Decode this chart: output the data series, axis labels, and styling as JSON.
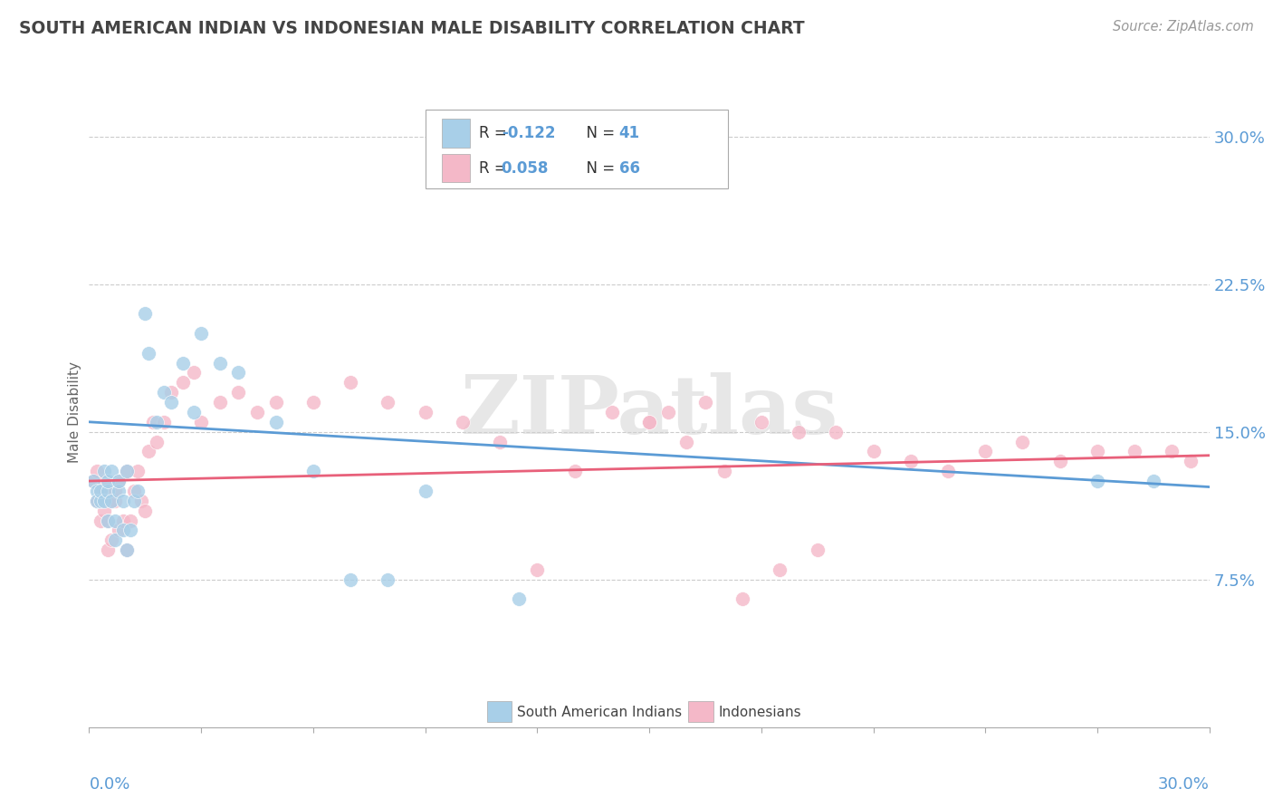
{
  "title": "SOUTH AMERICAN INDIAN VS INDONESIAN MALE DISABILITY CORRELATION CHART",
  "source": "Source: ZipAtlas.com",
  "ylabel": "Male Disability",
  "xlim": [
    0.0,
    0.3
  ],
  "ylim": [
    0.0,
    0.32
  ],
  "color_blue": "#a8cfe8",
  "color_pink": "#f4b8c8",
  "color_line_blue": "#5b9bd5",
  "color_line_pink": "#e8607a",
  "color_tick_labels": "#5b9bd5",
  "color_grid": "#cccccc",
  "color_title": "#444444",
  "color_source": "#999999",
  "watermark": "ZIPatlas",
  "legend_text_color": "#333333",
  "legend_r_color": "#5b9bd5",
  "south_american_x": [
    0.001,
    0.002,
    0.002,
    0.003,
    0.003,
    0.004,
    0.004,
    0.005,
    0.005,
    0.005,
    0.006,
    0.006,
    0.007,
    0.007,
    0.008,
    0.008,
    0.009,
    0.009,
    0.01,
    0.01,
    0.011,
    0.012,
    0.013,
    0.015,
    0.016,
    0.018,
    0.02,
    0.022,
    0.025,
    0.028,
    0.03,
    0.035,
    0.04,
    0.05,
    0.06,
    0.07,
    0.08,
    0.09,
    0.115,
    0.27,
    0.285
  ],
  "south_american_y": [
    0.125,
    0.12,
    0.115,
    0.115,
    0.12,
    0.13,
    0.115,
    0.105,
    0.12,
    0.125,
    0.13,
    0.115,
    0.105,
    0.095,
    0.12,
    0.125,
    0.115,
    0.1,
    0.09,
    0.13,
    0.1,
    0.115,
    0.12,
    0.21,
    0.19,
    0.155,
    0.17,
    0.165,
    0.185,
    0.16,
    0.2,
    0.185,
    0.18,
    0.155,
    0.13,
    0.075,
    0.075,
    0.12,
    0.065,
    0.125,
    0.125
  ],
  "indonesian_x": [
    0.001,
    0.002,
    0.002,
    0.003,
    0.003,
    0.004,
    0.004,
    0.005,
    0.005,
    0.006,
    0.006,
    0.007,
    0.007,
    0.008,
    0.008,
    0.009,
    0.01,
    0.01,
    0.011,
    0.012,
    0.013,
    0.014,
    0.015,
    0.016,
    0.017,
    0.018,
    0.02,
    0.022,
    0.025,
    0.028,
    0.03,
    0.035,
    0.04,
    0.045,
    0.05,
    0.06,
    0.07,
    0.08,
    0.09,
    0.1,
    0.11,
    0.12,
    0.13,
    0.14,
    0.15,
    0.16,
    0.17,
    0.18,
    0.19,
    0.2,
    0.21,
    0.22,
    0.23,
    0.24,
    0.25,
    0.26,
    0.27,
    0.28,
    0.29,
    0.295,
    0.15,
    0.155,
    0.165,
    0.175,
    0.185,
    0.195
  ],
  "indonesian_y": [
    0.125,
    0.115,
    0.13,
    0.12,
    0.105,
    0.11,
    0.125,
    0.105,
    0.09,
    0.095,
    0.115,
    0.115,
    0.12,
    0.125,
    0.1,
    0.105,
    0.09,
    0.13,
    0.105,
    0.12,
    0.13,
    0.115,
    0.11,
    0.14,
    0.155,
    0.145,
    0.155,
    0.17,
    0.175,
    0.18,
    0.155,
    0.165,
    0.17,
    0.16,
    0.165,
    0.165,
    0.175,
    0.165,
    0.16,
    0.155,
    0.145,
    0.08,
    0.13,
    0.16,
    0.155,
    0.145,
    0.13,
    0.155,
    0.15,
    0.15,
    0.14,
    0.135,
    0.13,
    0.14,
    0.145,
    0.135,
    0.14,
    0.14,
    0.14,
    0.135,
    0.155,
    0.16,
    0.165,
    0.065,
    0.08,
    0.09
  ]
}
